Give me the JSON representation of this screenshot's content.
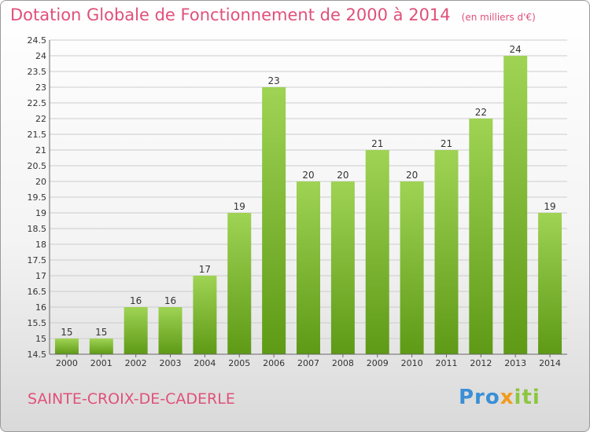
{
  "title": "Dotation Globale de Fonctionnement de 2000 à 2014",
  "unit_note": "(en milliers d'€)",
  "commune": "SAINTE-CROIX-DE-CADERLE",
  "logo": {
    "part1": "Pro",
    "part2": "x",
    "part3": "iti"
  },
  "colors": {
    "accent": "#e0507a",
    "bar_top": "#9fd354",
    "bar_bottom": "#5e9a16",
    "grid": "#cccccc"
  },
  "chart_data": {
    "type": "bar",
    "title": "Dotation Globale de Fonctionnement de 2000 à 2014",
    "xlabel": "",
    "ylabel": "",
    "categories": [
      "2000",
      "2001",
      "2002",
      "2003",
      "2004",
      "2005",
      "2006",
      "2007",
      "2008",
      "2009",
      "2010",
      "2011",
      "2012",
      "2013",
      "2014"
    ],
    "values": [
      15,
      15,
      16,
      16,
      17,
      19,
      23,
      20,
      20,
      21,
      20,
      21,
      22,
      24,
      19
    ],
    "ylim": [
      14.5,
      24.5
    ],
    "yticks": [
      "14.5",
      "15",
      "15.5",
      "16",
      "16.5",
      "17",
      "17.5",
      "18",
      "18.5",
      "19",
      "19.5",
      "20",
      "20.5",
      "21",
      "21.5",
      "22",
      "22.5",
      "23",
      "23.5",
      "24",
      "24.5"
    ],
    "grid": true,
    "legend": "none"
  }
}
